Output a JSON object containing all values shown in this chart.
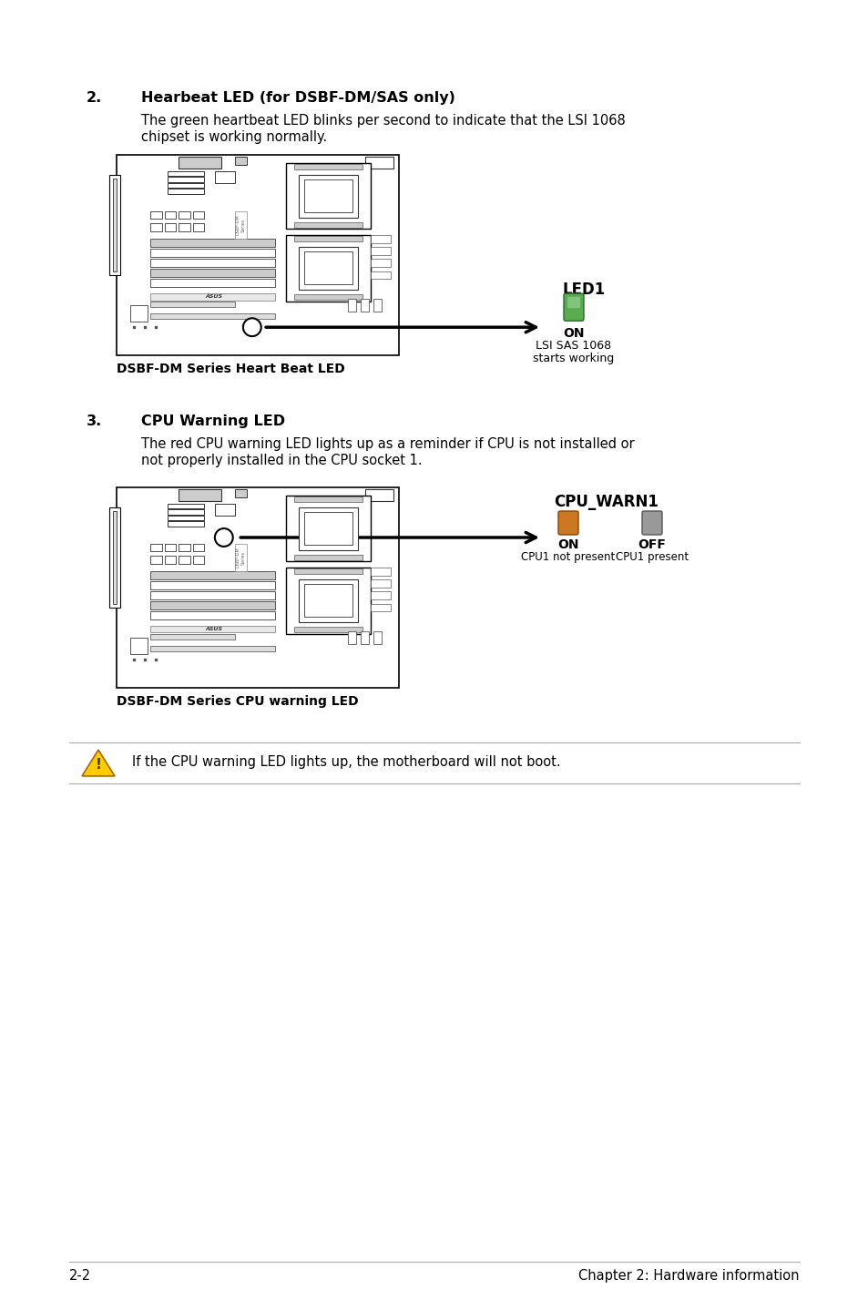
{
  "bg_color": "#ffffff",
  "text_color": "#000000",
  "section2_num": "2.",
  "section2_title": "Hearbeat LED (for DSBF-DM/SAS only)",
  "section2_body_line1": "The green heartbeat LED blinks per second to indicate that the LSI 1068",
  "section2_body_line2": "chipset is working normally.",
  "section2_caption": "DSBF-DM Series Heart Beat LED",
  "led1_label": "LED1",
  "led1_state": "ON",
  "led1_desc1": "LSI SAS 1068",
  "led1_desc2": "starts working",
  "section3_num": "3.",
  "section3_title": "CPU Warning LED",
  "section3_body_line1": "The red CPU warning LED lights up as a reminder if CPU is not installed or",
  "section3_body_line2": "not properly installed in the CPU socket 1.",
  "section3_caption": "DSBF-DM Series CPU warning LED",
  "cpu_warn_label": "CPU_WARN1",
  "cpu_on_label": "ON",
  "cpu_off_label": "OFF",
  "cpu_on_desc": "CPU1 not present",
  "cpu_off_desc": "CPU1 present",
  "note_text": "If the CPU warning LED lights up, the motherboard will not boot.",
  "footer_left": "2-2",
  "footer_right": "Chapter 2: Hardware information",
  "green_led_color": "#5aaa50",
  "orange_led_color": "#cc7722",
  "grey_led_color": "#999999",
  "arrow_color": "#000000",
  "board_edge": "#000000",
  "board_inner": "#444444"
}
